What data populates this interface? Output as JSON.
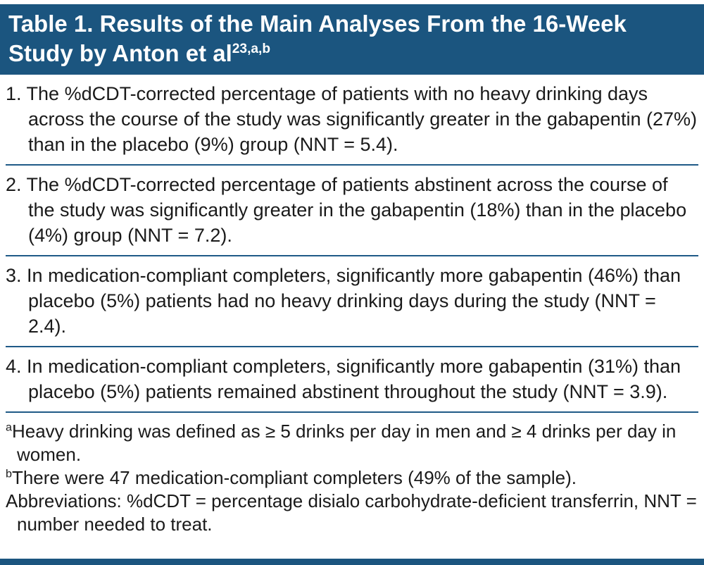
{
  "header": {
    "line1": "Table 1. Results of the Main Analyses From the 16-Week",
    "line2": "Study by Anton et al",
    "superscript": "23,a,b"
  },
  "items": [
    {
      "number": "1.",
      "text": "The %dCDT-corrected percentage of patients with no heavy drinking days across the course of the study was significantly greater in the gabapentin (27%) than in the placebo (9%) group (NNT = 5.4)."
    },
    {
      "number": "2.",
      "text": "The %dCDT-corrected percentage of patients abstinent across the course of the study was significantly greater in the gabapentin (18%) than in the placebo (4%) group (NNT = 7.2)."
    },
    {
      "number": "3.",
      "text": "In medication-compliant completers, significantly more gabapentin (46%) than placebo (5%) patients had no heavy drinking days during the study (NNT = 2.4)."
    },
    {
      "number": "4.",
      "text": "In medication-compliant completers, significantly more gabapentin (31%) than placebo (5%) patients remained abstinent throughout the study (NNT = 3.9)."
    }
  ],
  "footnotes": [
    {
      "sup": "a",
      "text": "Heavy drinking was defined as ≥ 5 drinks per day in men and ≥ 4 drinks per day in women."
    },
    {
      "sup": "b",
      "text": "There were 47 medication-compliant completers (49% of the sample)."
    },
    {
      "sup": "",
      "text": "Abbreviations: %dCDT = percentage disialo carbohydrate-deficient transferrin, NNT = number needed to treat."
    }
  ],
  "colors": {
    "header_background": "#1b557f",
    "rule": "#1f5a87",
    "bottom_bar": "#1b557f",
    "header_text": "#ffffff",
    "body_text": "#1a1a1a"
  }
}
